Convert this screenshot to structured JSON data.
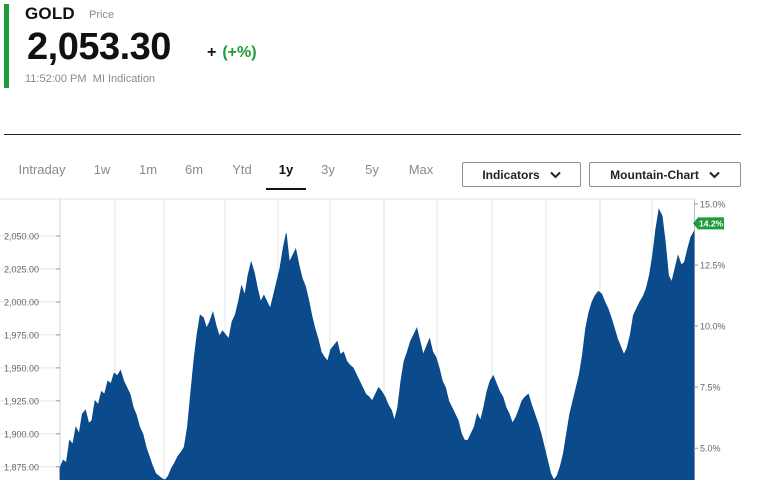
{
  "quote": {
    "symbol": "GOLD",
    "symbol_sub": "Price",
    "price": "2,053.30",
    "change_sign": "+",
    "change_pct": "(+%)",
    "timestamp": "11:52:00 PM",
    "source": "MI Indication"
  },
  "tabs": [
    {
      "label": "Intraday",
      "active": false
    },
    {
      "label": "1w",
      "active": false
    },
    {
      "label": "1m",
      "active": false
    },
    {
      "label": "6m",
      "active": false
    },
    {
      "label": "Ytd",
      "active": false
    },
    {
      "label": "1y",
      "active": true
    },
    {
      "label": "3y",
      "active": false
    },
    {
      "label": "5y",
      "active": false
    },
    {
      "label": "Max",
      "active": false
    }
  ],
  "controls": {
    "indicators_label": "Indicators",
    "chart_type_label": "Mountain-Chart",
    "chevron_icon": "chevron-down-icon"
  },
  "colors": {
    "accent": "#1e9b3a",
    "area_fill": "#0b4a8b",
    "gridline": "#e6e6e6",
    "badge_bg": "#1e9b3a"
  },
  "chart_data": {
    "type": "area",
    "title": "",
    "xlabel": "",
    "ylabel": "",
    "ylim": [
      1865,
      2078
    ],
    "y_ticks": [
      "2,050.00",
      "2,025.00",
      "2,000.00",
      "1,975.00",
      "1,950.00",
      "1,925.00",
      "1,900.00",
      "1,875.00"
    ],
    "y_tick_values": [
      2050,
      2025,
      2000,
      1975,
      1950,
      1925,
      1900,
      1875
    ],
    "y2_ticks": [
      "15.0%",
      "12.5%",
      "10.0%",
      "7.5%",
      "5.0%"
    ],
    "y2_tick_values": [
      15.0,
      12.5,
      10.0,
      7.5,
      5.0
    ],
    "y2lim": [
      3.7,
      15.2
    ],
    "current_badge": "14.2%",
    "current_badge_value": 14.2,
    "grid": true,
    "series": [
      {
        "values": [
          1874,
          1880,
          1878,
          1895,
          1892,
          1905,
          1900,
          1915,
          1918,
          1908,
          1910,
          1925,
          1922,
          1932,
          1930,
          1940,
          1938,
          1946,
          1944,
          1948,
          1940,
          1935,
          1930,
          1920,
          1914,
          1905,
          1900,
          1890,
          1883,
          1876,
          1870,
          1868,
          1866,
          1865,
          1868,
          1874,
          1878,
          1883,
          1886,
          1890,
          1905,
          1930,
          1955,
          1975,
          1990,
          1988,
          1980,
          1985,
          1992,
          1982,
          1974,
          1978,
          1975,
          1972,
          1985,
          1990,
          2000,
          2012,
          2005,
          2020,
          2030,
          2022,
          2010,
          2000,
          2005,
          2000,
          1995,
          2005,
          2015,
          2025,
          2040,
          2052,
          2030,
          2035,
          2040,
          2028,
          2018,
          2012,
          2002,
          1990,
          1980,
          1972,
          1962,
          1958,
          1955,
          1964,
          1967,
          1970,
          1960,
          1962,
          1955,
          1952,
          1950,
          1945,
          1940,
          1935,
          1930,
          1928,
          1925,
          1930,
          1935,
          1932,
          1928,
          1922,
          1918,
          1910,
          1920,
          1940,
          1955,
          1962,
          1970,
          1975,
          1980,
          1970,
          1960,
          1966,
          1972,
          1962,
          1958,
          1950,
          1940,
          1935,
          1925,
          1920,
          1915,
          1910,
          1900,
          1895,
          1895,
          1900,
          1905,
          1915,
          1910,
          1920,
          1932,
          1940,
          1944,
          1938,
          1932,
          1928,
          1920,
          1915,
          1908,
          1912,
          1918,
          1925,
          1928,
          1930,
          1922,
          1915,
          1908,
          1900,
          1890,
          1880,
          1870,
          1865,
          1868,
          1875,
          1885,
          1900,
          1915,
          1925,
          1935,
          1945,
          1960,
          1980,
          1992,
          2000,
          2005,
          2008,
          2006,
          2000,
          1995,
          1988,
          1980,
          1972,
          1966,
          1960,
          1965,
          1975,
          1990,
          1995,
          2000,
          2004,
          2010,
          2020,
          2035,
          2055,
          2070,
          2065,
          2045,
          2020,
          2015,
          2025,
          2035,
          2028,
          2030,
          2040,
          2049,
          2053.3
        ]
      }
    ]
  }
}
